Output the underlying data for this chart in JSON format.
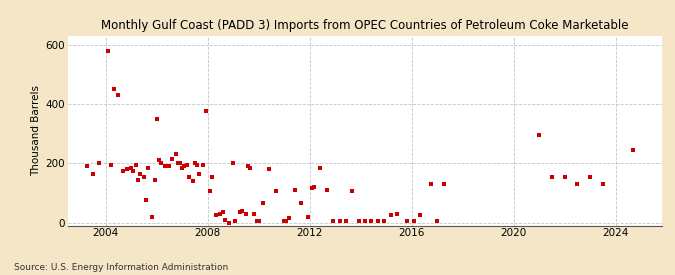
{
  "title": "Monthly Gulf Coast (PADD 3) Imports from OPEC Countries of Petroleum Coke Marketable",
  "ylabel": "Thousand Barrels",
  "source": "Source: U.S. Energy Information Administration",
  "background_color": "#f5e6c8",
  "plot_background": "#ffffff",
  "marker_color": "#cc0000",
  "grid_color": "#b0b8c0",
  "xlim": [
    2002.5,
    2025.8
  ],
  "ylim": [
    -10,
    630
  ],
  "yticks": [
    0,
    200,
    400,
    600
  ],
  "xticks": [
    2004,
    2008,
    2012,
    2016,
    2020,
    2024
  ],
  "data": [
    [
      2003.25,
      190
    ],
    [
      2003.5,
      165
    ],
    [
      2003.75,
      200
    ],
    [
      2004.08,
      580
    ],
    [
      2004.2,
      195
    ],
    [
      2004.33,
      450
    ],
    [
      2004.5,
      430
    ],
    [
      2004.67,
      175
    ],
    [
      2004.83,
      180
    ],
    [
      2005.0,
      185
    ],
    [
      2005.08,
      175
    ],
    [
      2005.17,
      195
    ],
    [
      2005.25,
      145
    ],
    [
      2005.33,
      165
    ],
    [
      2005.5,
      155
    ],
    [
      2005.58,
      75
    ],
    [
      2005.67,
      185
    ],
    [
      2005.83,
      20
    ],
    [
      2005.92,
      145
    ],
    [
      2006.0,
      350
    ],
    [
      2006.08,
      210
    ],
    [
      2006.17,
      200
    ],
    [
      2006.33,
      190
    ],
    [
      2006.5,
      190
    ],
    [
      2006.58,
      215
    ],
    [
      2006.75,
      230
    ],
    [
      2006.83,
      200
    ],
    [
      2006.92,
      200
    ],
    [
      2007.0,
      185
    ],
    [
      2007.08,
      190
    ],
    [
      2007.17,
      195
    ],
    [
      2007.25,
      155
    ],
    [
      2007.42,
      140
    ],
    [
      2007.5,
      200
    ],
    [
      2007.58,
      195
    ],
    [
      2007.67,
      165
    ],
    [
      2007.83,
      195
    ],
    [
      2007.92,
      375
    ],
    [
      2008.08,
      105
    ],
    [
      2008.17,
      155
    ],
    [
      2008.33,
      25
    ],
    [
      2008.5,
      30
    ],
    [
      2008.58,
      35
    ],
    [
      2008.67,
      10
    ],
    [
      2008.83,
      0
    ],
    [
      2009.0,
      200
    ],
    [
      2009.08,
      5
    ],
    [
      2009.25,
      35
    ],
    [
      2009.33,
      40
    ],
    [
      2009.5,
      30
    ],
    [
      2009.58,
      190
    ],
    [
      2009.67,
      185
    ],
    [
      2009.83,
      30
    ],
    [
      2009.92,
      5
    ],
    [
      2010.0,
      5
    ],
    [
      2010.17,
      65
    ],
    [
      2010.42,
      180
    ],
    [
      2010.67,
      105
    ],
    [
      2011.0,
      5
    ],
    [
      2011.08,
      5
    ],
    [
      2011.17,
      15
    ],
    [
      2011.42,
      110
    ],
    [
      2011.67,
      65
    ],
    [
      2011.92,
      20
    ],
    [
      2012.08,
      115
    ],
    [
      2012.17,
      120
    ],
    [
      2012.42,
      185
    ],
    [
      2012.67,
      110
    ],
    [
      2012.92,
      5
    ],
    [
      2013.17,
      5
    ],
    [
      2013.42,
      5
    ],
    [
      2013.67,
      105
    ],
    [
      2013.92,
      5
    ],
    [
      2014.17,
      5
    ],
    [
      2014.42,
      5
    ],
    [
      2014.67,
      5
    ],
    [
      2014.92,
      5
    ],
    [
      2015.17,
      25
    ],
    [
      2015.42,
      30
    ],
    [
      2015.83,
      5
    ],
    [
      2016.08,
      5
    ],
    [
      2016.33,
      25
    ],
    [
      2016.75,
      130
    ],
    [
      2017.0,
      5
    ],
    [
      2017.25,
      130
    ],
    [
      2021.0,
      295
    ],
    [
      2021.5,
      155
    ],
    [
      2022.0,
      155
    ],
    [
      2022.5,
      130
    ],
    [
      2023.0,
      155
    ],
    [
      2023.5,
      130
    ],
    [
      2024.67,
      245
    ]
  ]
}
